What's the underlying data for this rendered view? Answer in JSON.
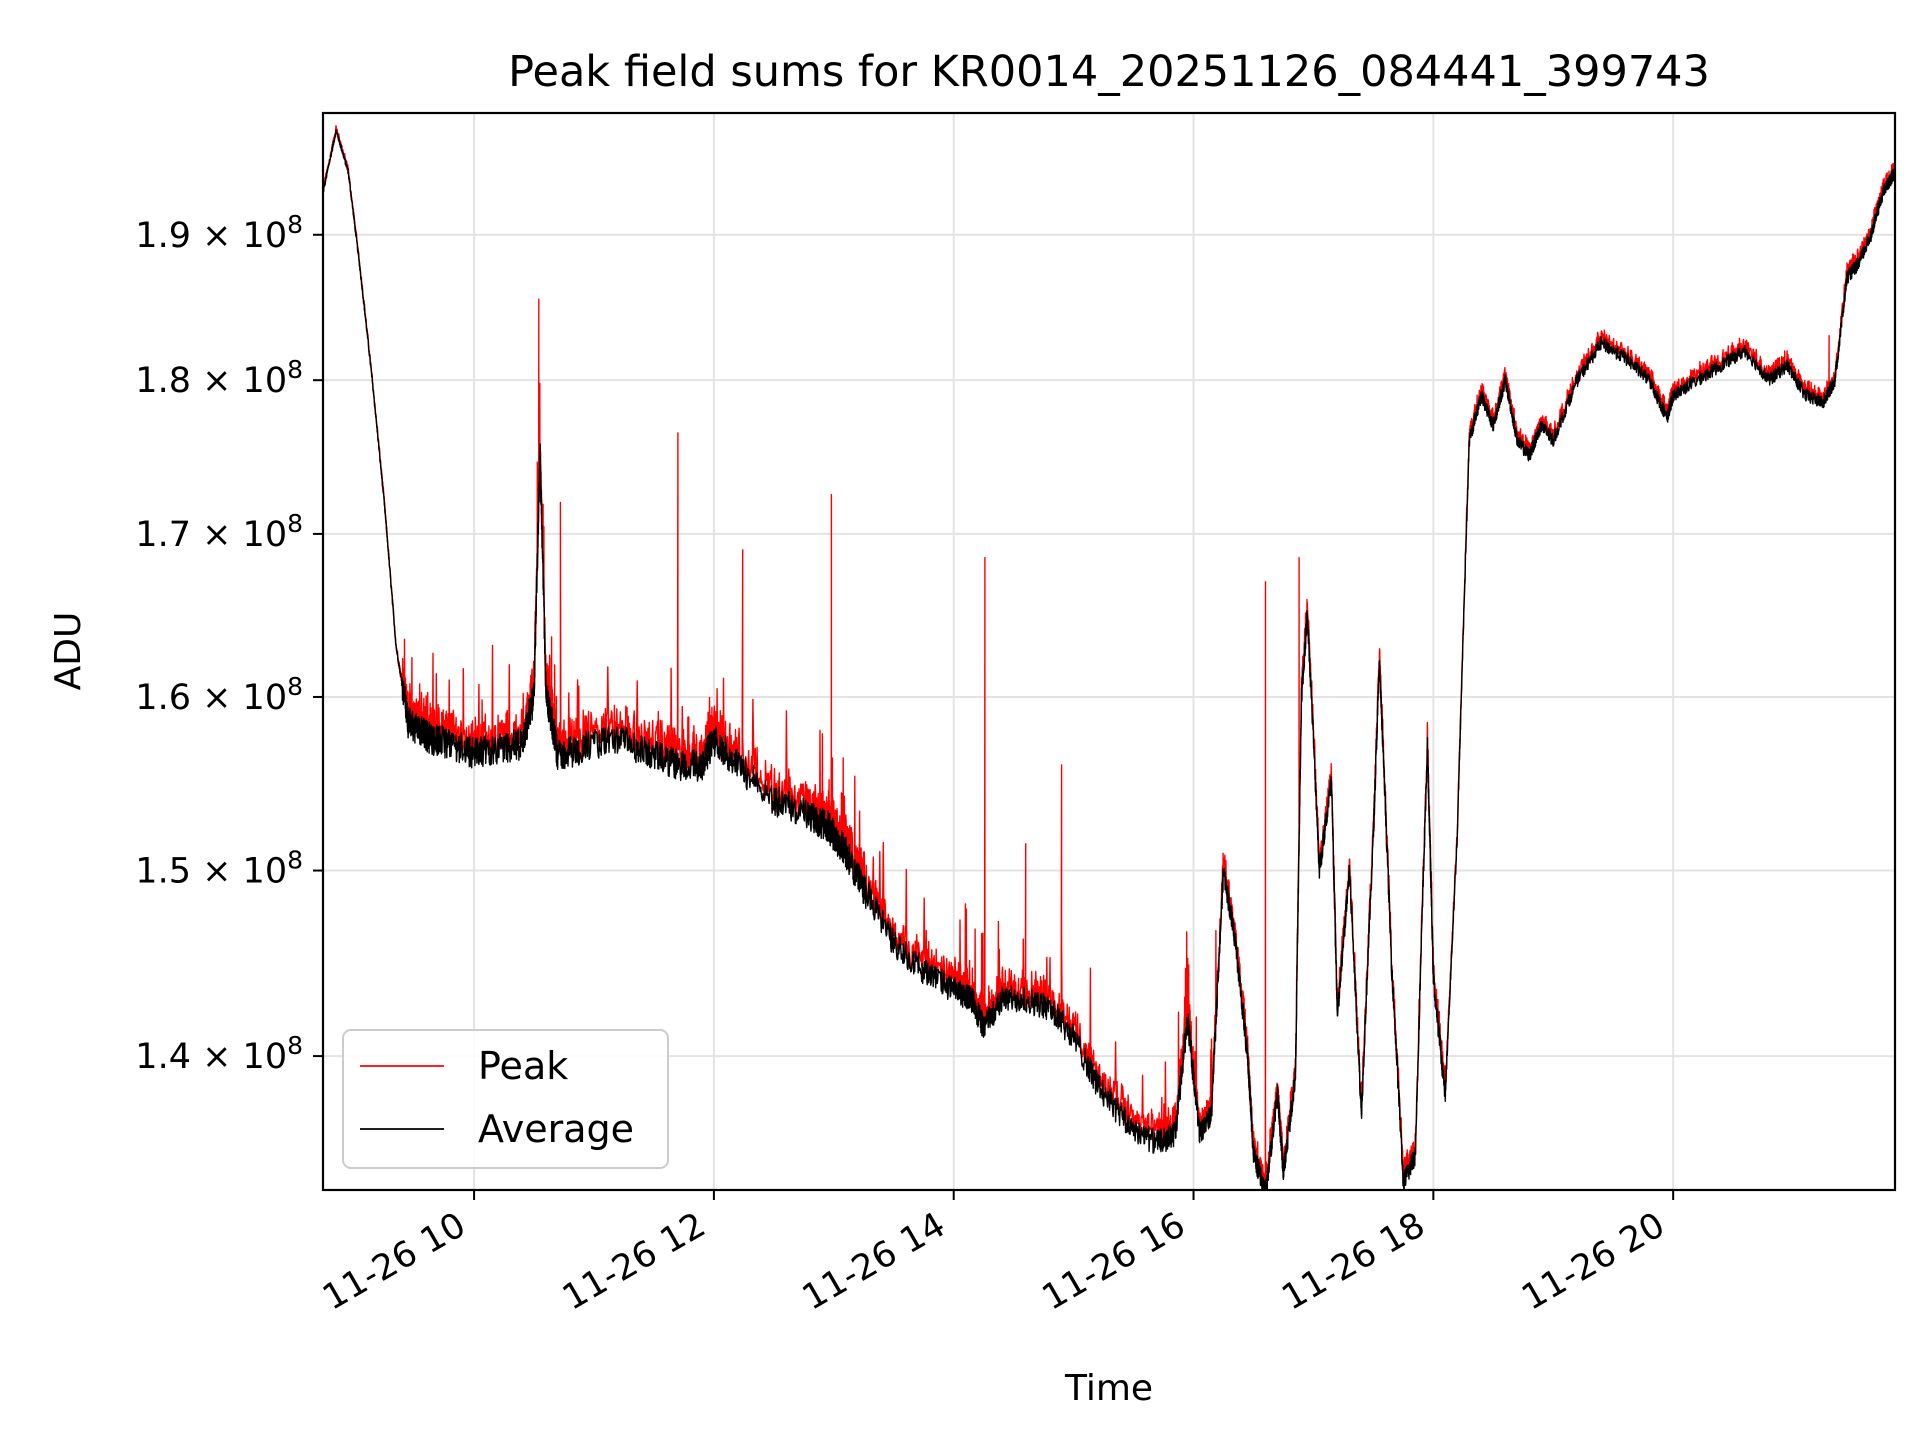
{
  "chart_data": {
    "type": "line",
    "title": "Peak field sums for KR0014_20251126_084441_399743",
    "xlabel": "Time",
    "ylabel": "ADU",
    "x_unit": "hours on 2025-11-26",
    "xlim": [
      8.74,
      21.85
    ],
    "ylim": [
      133200000.0,
      198800000.0
    ],
    "y_scale": "log",
    "grid": true,
    "x_ticks": [
      {
        "value": 10,
        "label": "11-26 10"
      },
      {
        "value": 12,
        "label": "11-26 12"
      },
      {
        "value": 14,
        "label": "11-26 14"
      },
      {
        "value": 16,
        "label": "11-26 16"
      },
      {
        "value": 18,
        "label": "11-26 18"
      },
      {
        "value": 20,
        "label": "11-26 20"
      }
    ],
    "y_ticks": [
      {
        "value": 140000000.0,
        "mantissa": "1.4",
        "base": "10",
        "exponent": "8"
      },
      {
        "value": 150000000.0,
        "mantissa": "1.5",
        "base": "10",
        "exponent": "8"
      },
      {
        "value": 160000000.0,
        "mantissa": "1.6",
        "base": "10",
        "exponent": "8"
      },
      {
        "value": 170000000.0,
        "mantissa": "1.7",
        "base": "10",
        "exponent": "8"
      },
      {
        "value": 180000000.0,
        "mantissa": "1.8",
        "base": "10",
        "exponent": "8"
      },
      {
        "value": 190000000.0,
        "mantissa": "1.9",
        "base": "10",
        "exponent": "8"
      }
    ],
    "legend": {
      "position": "lower-left"
    },
    "series": [
      {
        "name": "Average",
        "color": "#000000",
        "x": [
          8.74,
          8.85,
          8.95,
          9.05,
          9.15,
          9.25,
          9.35,
          9.45,
          9.55,
          9.65,
          9.8,
          10.0,
          10.2,
          10.4,
          10.5,
          10.55,
          10.6,
          10.65,
          10.7,
          10.9,
          11.2,
          11.5,
          11.7,
          11.9,
          12.0,
          12.2,
          12.5,
          12.8,
          12.95,
          13.0,
          13.1,
          13.25,
          13.5,
          13.75,
          14.0,
          14.15,
          14.25,
          14.4,
          14.6,
          14.8,
          15.0,
          15.2,
          15.45,
          15.7,
          15.85,
          15.95,
          16.05,
          16.15,
          16.25,
          16.35,
          16.45,
          16.5,
          16.6,
          16.7,
          16.75,
          16.85,
          16.9,
          16.95,
          17.05,
          17.15,
          17.2,
          17.3,
          17.4,
          17.5,
          17.55,
          17.65,
          17.75,
          17.85,
          17.95,
          18.0,
          18.1,
          18.2,
          18.3,
          18.4,
          18.5,
          18.6,
          18.7,
          18.8,
          18.9,
          19.0,
          19.2,
          19.4,
          19.6,
          19.8,
          19.95,
          20.0,
          20.2,
          20.4,
          20.6,
          20.8,
          20.95,
          21.1,
          21.25,
          21.35,
          21.45,
          21.55,
          21.65,
          21.75,
          21.85
        ],
        "values": [
          193000000.0,
          197500000.0,
          194500000.0,
          187500000.0,
          180000000.0,
          172000000.0,
          163000000.0,
          158500000.0,
          158000000.0,
          157500000.0,
          157300000.0,
          156700000.0,
          157000000.0,
          157200000.0,
          160000000.0,
          175000000.0,
          160000000.0,
          158500000.0,
          156500000.0,
          157000000.0,
          157500000.0,
          156500000.0,
          156000000.0,
          156000000.0,
          157500000.0,
          156000000.0,
          154000000.0,
          153000000.0,
          152500000.0,
          152000000.0,
          151000000.0,
          149000000.0,
          146000000.0,
          144500000.0,
          143500000.0,
          143000000.0,
          141500000.0,
          143000000.0,
          143000000.0,
          142500000.0,
          141000000.0,
          138500000.0,
          136500000.0,
          135500000.0,
          136000000.0,
          142000000.0,
          136000000.0,
          137000000.0,
          150000000.0,
          146000000.0,
          140000000.0,
          135000000.0,
          133000000.0,
          138000000.0,
          134000000.0,
          139000000.0,
          160000000.0,
          165000000.0,
          150000000.0,
          155000000.0,
          142000000.0,
          150000000.0,
          137000000.0,
          152000000.0,
          162000000.0,
          145000000.0,
          133500000.0,
          135000000.0,
          157000000.0,
          144000000.0,
          138000000.0,
          152000000.0,
          176000000.0,
          179000000.0,
          177000000.0,
          180000000.0,
          176000000.0,
          175000000.0,
          177000000.0,
          176000000.0,
          180000000.0,
          182500000.0,
          181500000.0,
          180000000.0,
          177500000.0,
          179000000.0,
          180000000.0,
          181000000.0,
          182000000.0,
          180000000.0,
          181000000.0,
          179000000.0,
          178500000.0,
          180000000.0,
          187000000.0,
          188000000.0,
          190000000.0,
          193000000.0,
          194500000.0
        ]
      },
      {
        "name": "Peak",
        "color": "#ff0000",
        "spikes": [
          {
            "x": 10.54,
            "value": 185500000.0
          },
          {
            "x": 10.72,
            "value": 172000000.0
          },
          {
            "x": 11.7,
            "value": 176500000.0
          },
          {
            "x": 12.24,
            "value": 169000000.0
          },
          {
            "x": 12.98,
            "value": 172500000.0
          },
          {
            "x": 14.26,
            "value": 168500000.0
          },
          {
            "x": 14.6,
            "value": 151500000.0
          },
          {
            "x": 14.9,
            "value": 156000000.0
          },
          {
            "x": 16.6,
            "value": 167000000.0
          },
          {
            "x": 16.88,
            "value": 168500000.0
          },
          {
            "x": 21.3,
            "value": 183000000.0
          }
        ]
      }
    ]
  }
}
